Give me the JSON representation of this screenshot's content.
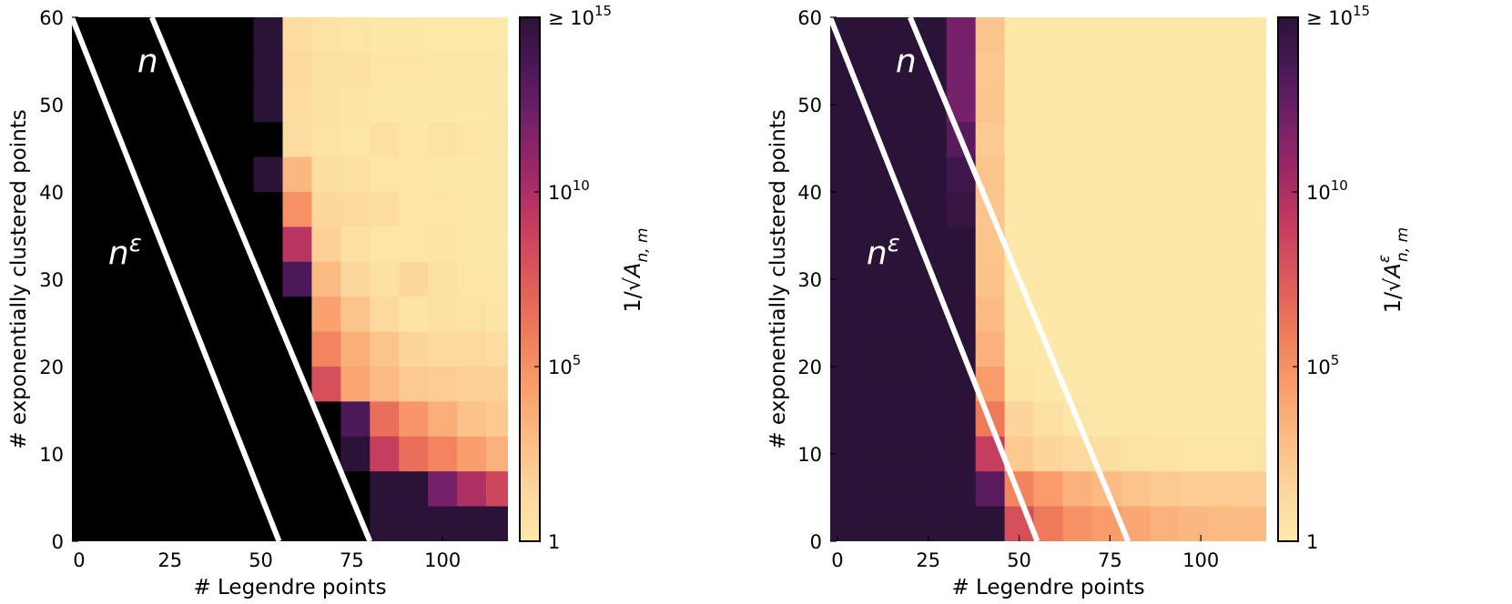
{
  "chart_data": [
    {
      "type": "heatmap",
      "panel": "left",
      "xlabel": "# Legendre points",
      "ylabel": "# exponentially clustered points",
      "x_range": [
        -2,
        118
      ],
      "y_range": [
        0,
        60
      ],
      "x_ticks": [
        "0",
        "25",
        "50",
        "75",
        "100"
      ],
      "x_tick_values": [
        0,
        25,
        50,
        75,
        100
      ],
      "y_ticks": [
        "0",
        "10",
        "20",
        "30",
        "40",
        "50",
        "60"
      ],
      "y_tick_values": [
        0,
        10,
        20,
        30,
        40,
        50,
        60
      ],
      "colorbar": {
        "label_prefix": "1/√",
        "label_main": "A",
        "label_sup": "",
        "label_sub": "n, m",
        "scale": "log10",
        "range": [
          0,
          15
        ],
        "ticks": [
          {
            "value": 0,
            "base": "1",
            "exp": ""
          },
          {
            "value": 5,
            "base": "10",
            "exp": "5"
          },
          {
            "value": 10,
            "base": "10",
            "exp": "10"
          },
          {
            "value": 15,
            "base": "≥ 10",
            "exp": "15"
          }
        ]
      },
      "lines": [
        {
          "name": "n^ε",
          "label": "n",
          "label_sup": "ε",
          "x_at_y0": 55,
          "x_at_y60": -2,
          "label_pos": [
            8,
            33
          ]
        },
        {
          "name": "n",
          "label": "n",
          "label_sup": "",
          "x_at_y0": 80,
          "x_at_y60": 20,
          "label_pos": [
            16,
            55
          ]
        }
      ],
      "cell_width": 8,
      "cell_height": 4,
      "cols_x0": [
        0,
        8,
        16,
        24,
        32,
        40,
        48,
        56,
        64,
        72,
        80,
        88,
        96,
        104,
        112
      ],
      "rows_y0": [
        56,
        52,
        48,
        44,
        40,
        36,
        32,
        28,
        24,
        20,
        16,
        12,
        8,
        4,
        0
      ],
      "log10_values": [
        [
          99,
          99,
          99,
          99,
          99,
          99,
          16,
          1.0,
          0.6,
          0.4,
          0.2,
          0.2,
          0.1,
          0.1,
          0.1
        ],
        [
          99,
          99,
          99,
          99,
          99,
          99,
          16,
          1.2,
          0.8,
          0.8,
          0.4,
          0.4,
          0.3,
          0.3,
          0.3
        ],
        [
          99,
          99,
          99,
          99,
          99,
          99,
          16,
          1.0,
          0.7,
          0.5,
          0.3,
          0.3,
          0.2,
          0.2,
          0.2
        ],
        [
          99,
          99,
          99,
          99,
          99,
          99,
          99,
          1.0,
          0.6,
          0.4,
          0.8,
          0.4,
          0.6,
          0.4,
          0.3
        ],
        [
          99,
          99,
          99,
          99,
          99,
          99,
          16,
          3.2,
          0.9,
          0.8,
          0.4,
          0.4,
          0.3,
          0.3,
          0.3
        ],
        [
          99,
          99,
          99,
          99,
          99,
          99,
          99,
          5.0,
          1.3,
          1.2,
          1.0,
          0.4,
          0.4,
          0.3,
          0.3
        ],
        [
          99,
          99,
          99,
          99,
          99,
          99,
          99,
          9.5,
          1.8,
          0.8,
          0.4,
          0.4,
          0.5,
          0.3,
          0.3
        ],
        [
          99,
          99,
          99,
          99,
          99,
          99,
          99,
          13.5,
          3.0,
          1.3,
          0.7,
          1.3,
          0.8,
          0.4,
          0.3
        ],
        [
          99,
          99,
          99,
          99,
          99,
          99,
          99,
          99,
          4.2,
          2.5,
          1.2,
          0.5,
          0.8,
          0.6,
          0.4
        ],
        [
          99,
          99,
          99,
          99,
          99,
          99,
          99,
          99,
          5.5,
          3.6,
          2.5,
          1.5,
          1.2,
          1.2,
          1.0
        ],
        [
          99,
          99,
          99,
          99,
          99,
          99,
          99,
          99,
          8.0,
          4.0,
          3.0,
          2.2,
          2.0,
          1.8,
          1.8
        ],
        [
          99,
          99,
          99,
          99,
          99,
          99,
          99,
          99,
          99,
          13.5,
          6.5,
          4.8,
          3.6,
          2.6,
          2.2
        ],
        [
          99,
          99,
          99,
          99,
          99,
          99,
          99,
          99,
          99,
          15.5,
          9.0,
          6.5,
          5.5,
          4.4,
          3.5
        ],
        [
          99,
          99,
          99,
          99,
          99,
          99,
          99,
          99,
          99,
          99,
          15,
          15,
          12,
          10,
          8.5
        ],
        [
          99,
          99,
          99,
          99,
          99,
          99,
          99,
          99,
          99,
          99,
          15,
          15,
          15,
          15,
          15
        ]
      ]
    },
    {
      "type": "heatmap",
      "panel": "right",
      "xlabel": "# Legendre points",
      "ylabel": "# exponentially clustered points",
      "x_range": [
        -2,
        118
      ],
      "y_range": [
        0,
        60
      ],
      "x_ticks": [
        "0",
        "25",
        "50",
        "75",
        "100"
      ],
      "x_tick_values": [
        0,
        25,
        50,
        75,
        100
      ],
      "y_ticks": [
        "0",
        "10",
        "20",
        "30",
        "40",
        "50",
        "60"
      ],
      "y_tick_values": [
        0,
        10,
        20,
        30,
        40,
        50,
        60
      ],
      "colorbar": {
        "label_prefix": "1/√",
        "label_main": "A",
        "label_sup": "ε",
        "label_sub": "n, m",
        "scale": "log10",
        "range": [
          0,
          15
        ],
        "ticks": [
          {
            "value": 0,
            "base": "1",
            "exp": ""
          },
          {
            "value": 5,
            "base": "10",
            "exp": "5"
          },
          {
            "value": 10,
            "base": "10",
            "exp": "10"
          },
          {
            "value": 15,
            "base": "≥ 10",
            "exp": "15"
          }
        ]
      },
      "lines": [
        {
          "name": "n^ε",
          "label": "n",
          "label_sup": "ε",
          "x_at_y0": 55,
          "x_at_y60": -2,
          "label_pos": [
            8,
            33
          ]
        },
        {
          "name": "n",
          "label": "n",
          "label_sup": "",
          "x_at_y0": 80,
          "x_at_y60": 20,
          "label_pos": [
            16,
            55
          ]
        }
      ],
      "cell_width": 8,
      "cell_height": 4,
      "cols_x0": [
        -2,
        6,
        14,
        22,
        30,
        38,
        46,
        54,
        62,
        70,
        78,
        86,
        94,
        102,
        110
      ],
      "rows_y0": [
        56,
        52,
        48,
        44,
        40,
        36,
        32,
        28,
        24,
        20,
        16,
        12,
        8,
        4,
        0
      ],
      "log10_values": [
        [
          16,
          16,
          16,
          16,
          12,
          2.5,
          0.2,
          0.2,
          0.2,
          0.2,
          0.2,
          0.2,
          0.2,
          0.2,
          0.2
        ],
        [
          16,
          16,
          16,
          16,
          12,
          2.3,
          0.2,
          0.2,
          0.2,
          0.2,
          0.2,
          0.2,
          0.2,
          0.2,
          0.2
        ],
        [
          16,
          16,
          16,
          16,
          12,
          2.5,
          0.2,
          0.2,
          0.2,
          0.2,
          0.2,
          0.2,
          0.2,
          0.2,
          0.2
        ],
        [
          16,
          16,
          16,
          16,
          13,
          2.2,
          0.2,
          0.2,
          0.2,
          0.2,
          0.2,
          0.2,
          0.2,
          0.2,
          0.2
        ],
        [
          16,
          16,
          16,
          16,
          14,
          2.5,
          0.2,
          0.2,
          0.2,
          0.2,
          0.2,
          0.2,
          0.2,
          0.2,
          0.2
        ],
        [
          16,
          16,
          16,
          16,
          14.5,
          2.4,
          0.2,
          0.2,
          0.2,
          0.2,
          0.2,
          0.2,
          0.2,
          0.2,
          0.2
        ],
        [
          16,
          16,
          16,
          16,
          15,
          2.5,
          0.2,
          0.2,
          0.2,
          0.2,
          0.2,
          0.2,
          0.2,
          0.2,
          0.2
        ],
        [
          16,
          16,
          16,
          16,
          16,
          2.6,
          0.3,
          0.2,
          0.2,
          0.2,
          0.2,
          0.2,
          0.2,
          0.2,
          0.2
        ],
        [
          16,
          16,
          16,
          16,
          16,
          3.0,
          0.3,
          0.2,
          0.2,
          0.2,
          0.2,
          0.2,
          0.2,
          0.2,
          0.2
        ],
        [
          16,
          16,
          16,
          16,
          16,
          3.5,
          0.3,
          0.2,
          0.2,
          0.2,
          0.2,
          0.2,
          0.2,
          0.2,
          0.2
        ],
        [
          16,
          16,
          16,
          16,
          16,
          4.5,
          0.5,
          0.2,
          0.2,
          0.2,
          0.2,
          0.2,
          0.2,
          0.2,
          0.2
        ],
        [
          16,
          16,
          16,
          16,
          16,
          6.0,
          1.5,
          0.8,
          0.4,
          0.3,
          0.3,
          0.2,
          0.2,
          0.2,
          0.2
        ],
        [
          16,
          16,
          16,
          16,
          16,
          9.0,
          2.2,
          1.5,
          1.2,
          0.9,
          0.6,
          0.5,
          0.4,
          0.4,
          0.4
        ],
        [
          16,
          16,
          16,
          16,
          16,
          13,
          5.5,
          4.5,
          3.5,
          3.0,
          2.5,
          2.2,
          2.0,
          2.0,
          1.9
        ],
        [
          16,
          16,
          16,
          16,
          16,
          15,
          8.0,
          6.0,
          5.0,
          4.5,
          4.0,
          3.5,
          3.2,
          3.0,
          3.0
        ]
      ]
    }
  ]
}
